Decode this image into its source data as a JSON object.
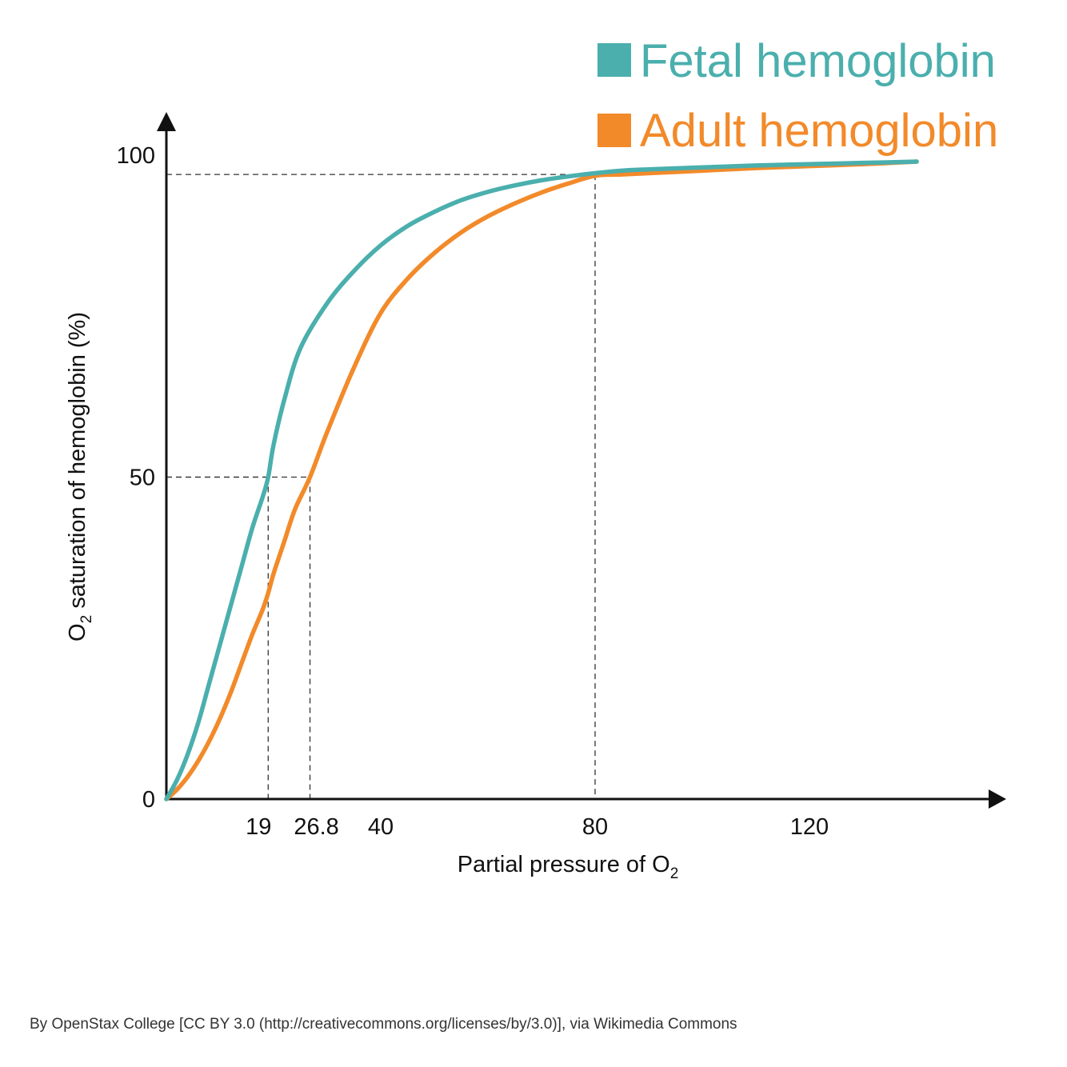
{
  "chart_data": {
    "type": "line",
    "xlabel_main": "Partial pressure of O",
    "xlabel_sub": "2",
    "ylabel_pre": "O",
    "ylabel_sub": "2",
    "ylabel_post": " saturation of hemoglobin (%)",
    "x_ticks": [
      19,
      26.8,
      40,
      80,
      120
    ],
    "x_tick_labels": [
      "19",
      "26.8",
      "40",
      "80",
      "120"
    ],
    "y_ticks": [
      0,
      50,
      100
    ],
    "y_tick_labels": [
      "0",
      "50",
      "100"
    ],
    "xlim": [
      0,
      150
    ],
    "ylim": [
      0,
      100
    ],
    "grid": false,
    "legend_position": "top-right",
    "reference_lines": [
      {
        "x": 19,
        "y": 50
      },
      {
        "x": 26.8,
        "y": 50
      },
      {
        "x": 80,
        "y": 97
      }
    ],
    "series": [
      {
        "name": "Fetal hemoglobin",
        "color": "#4AAFAD",
        "x": [
          0,
          2,
          4,
          6,
          8,
          10,
          12,
          14,
          16,
          18,
          19,
          20,
          22,
          25,
          30,
          35,
          40,
          45,
          50,
          55,
          60,
          65,
          70,
          75,
          80,
          85,
          90,
          100,
          110,
          120,
          130,
          140
        ],
        "y": [
          0,
          3,
          7,
          12,
          18,
          24,
          30,
          36,
          42,
          47,
          50,
          55,
          62,
          70,
          77,
          82,
          86,
          89,
          91.2,
          93,
          94.3,
          95.3,
          96.1,
          96.7,
          97.2,
          97.6,
          97.8,
          98.1,
          98.4,
          98.6,
          98.8,
          99
        ]
      },
      {
        "name": "Adult hemoglobin",
        "color": "#F28A2A",
        "x": [
          0,
          2,
          4,
          6,
          8,
          10,
          12,
          14,
          16,
          18,
          19,
          20,
          22,
          24,
          26.8,
          30,
          35,
          40,
          45,
          50,
          55,
          60,
          65,
          70,
          75,
          80,
          85,
          90,
          100,
          110,
          120,
          130,
          140
        ],
        "y": [
          0,
          1.5,
          3.5,
          6,
          9,
          12.5,
          16.5,
          21,
          25.5,
          29.5,
          32,
          35,
          40,
          45,
          50,
          57,
          67,
          75.5,
          80.8,
          84.8,
          88,
          90.5,
          92.5,
          94.2,
          95.6,
          96.8,
          97,
          97.2,
          97.6,
          98,
          98.3,
          98.6,
          99
        ]
      }
    ]
  },
  "legend": {
    "items": [
      {
        "label": "Fetal hemoglobin",
        "color": "#4AAFAD"
      },
      {
        "label": "Adult hemoglobin",
        "color": "#F28A2A"
      }
    ]
  },
  "credit": "By OpenStax College [CC BY 3.0 (http://creativecommons.org/licenses/by/3.0)], via Wikimedia Commons"
}
